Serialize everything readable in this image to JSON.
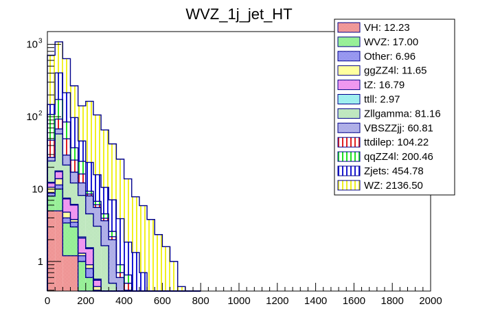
{
  "chart_data": {
    "type": "bar",
    "subtype": "stacked-histogram",
    "title": "WVZ_1j_jet_HT",
    "xlabel": "",
    "ylabel": "",
    "xlim": [
      0,
      2000
    ],
    "ylim": [
      0.39,
      1500
    ],
    "yscale": "log",
    "bin_width": 40,
    "x_ticks": [
      "0",
      "200",
      "400",
      "600",
      "800",
      "1000",
      "1200",
      "1400",
      "1600",
      "1800",
      "2000"
    ],
    "x_tick_values": [
      0,
      200,
      400,
      600,
      800,
      1000,
      1200,
      1400,
      1600,
      1800,
      2000
    ],
    "y_ticks": [
      {
        "value": 1,
        "base": "1",
        "exp": ""
      },
      {
        "value": 10,
        "base": "10",
        "exp": ""
      },
      {
        "value": 100,
        "base": "10",
        "exp": "2"
      },
      {
        "value": 1000,
        "base": "10",
        "exp": "3"
      }
    ],
    "legend_position": "top-right",
    "grid": false,
    "bin_edges_start": [
      0,
      40,
      80,
      120,
      160,
      200,
      240,
      280,
      320,
      360,
      400,
      440,
      480,
      520,
      560,
      600,
      640,
      680,
      720,
      760
    ],
    "series": [
      {
        "name": "VH",
        "legend": "VH: 12.23",
        "color": "#e03030",
        "pattern": "checker",
        "values": [
          5.0,
          5.0,
          1.2,
          1.2,
          0,
          0,
          0,
          0,
          0,
          0,
          0,
          0,
          0,
          0,
          0,
          0,
          0,
          0,
          0,
          0
        ]
      },
      {
        "name": "WVZ",
        "legend": "WVZ: 17.00",
        "color": "#30e030",
        "pattern": "checker",
        "values": [
          3.0,
          5.0,
          2.2,
          1.8,
          1.0,
          0.6,
          0.3,
          0,
          0,
          0,
          0,
          0,
          0,
          0,
          0,
          0,
          0,
          0,
          0,
          0
        ]
      },
      {
        "name": "Other",
        "legend": "Other: 6.96",
        "color": "#3030e0",
        "pattern": "checker",
        "values": [
          0.8,
          1.4,
          0.6,
          0.5,
          0.2,
          0.2,
          0.1,
          0,
          0,
          0,
          0,
          0,
          0,
          0,
          0,
          0,
          0,
          0,
          0,
          0
        ]
      },
      {
        "name": "ggZZ4l",
        "legend": "ggZZ4l: 11.65",
        "color": "#ffff40",
        "pattern": "checker",
        "values": [
          1.8,
          2.5,
          0.8,
          0.3,
          0.1,
          0.1,
          0.05,
          0,
          0,
          0,
          0,
          0,
          0,
          0,
          0,
          0,
          0,
          0,
          0,
          0
        ]
      },
      {
        "name": "tZ",
        "legend": "tZ: 16.79",
        "color": "#e030e0",
        "pattern": "checker",
        "values": [
          1.5,
          3.5,
          2.5,
          2.2,
          0.8,
          0.6,
          0.1,
          0.05,
          0,
          0,
          0,
          0,
          0,
          0,
          0,
          0,
          0,
          0,
          0,
          0
        ]
      },
      {
        "name": "ttll",
        "legend": "ttll: 2.97",
        "color": "#40e0e0",
        "pattern": "checker",
        "values": [
          0.3,
          0.4,
          0.2,
          0.15,
          0.08,
          0.05,
          0.02,
          0,
          0,
          0,
          0,
          0,
          0,
          0,
          0,
          0,
          0,
          0,
          0,
          0
        ]
      },
      {
        "name": "Zllgamma",
        "legend": "Zllgamma: 81.16",
        "color": "#80d080",
        "pattern": "checker",
        "values": [
          12,
          40,
          14,
          6,
          6,
          3,
          2.5,
          1.6,
          0.5,
          0.3,
          0.1,
          0,
          0,
          0,
          0,
          0,
          0,
          0,
          0,
          0
        ]
      },
      {
        "name": "VBSZZjj",
        "legend": "VBSZZjj: 60.81",
        "color": "#6060d0",
        "pattern": "checker",
        "values": [
          3,
          10,
          8,
          5,
          4,
          3.5,
          2.5,
          2,
          1.5,
          0.3,
          0.3,
          0.15,
          0.1,
          0,
          0,
          0,
          0,
          0,
          0,
          0
        ]
      },
      {
        "name": "ttdilep",
        "legend": "ttdilep: 104.22",
        "color": "#e02020",
        "pattern": "vlines",
        "values": [
          20,
          25,
          20,
          8,
          4,
          0.5,
          0.5,
          0.3,
          0.2,
          0.1,
          0.1,
          0.08,
          0.05,
          0,
          0,
          0,
          0,
          0,
          0,
          0
        ]
      },
      {
        "name": "qqZZ4l",
        "legend": "qqZZ4l: 200.46",
        "color": "#20e020",
        "pattern": "vlines",
        "values": [
          60,
          80,
          35,
          12,
          8,
          0.8,
          0.7,
          0.6,
          0.4,
          0.2,
          0.15,
          0.1,
          0.05,
          0,
          0,
          0,
          0,
          0,
          0,
          0
        ]
      },
      {
        "name": "Zjets",
        "legend": "Zjets: 454.78",
        "color": "#1818d0",
        "pattern": "vlines",
        "values": [
          40,
          230,
          130,
          60,
          22,
          14,
          9,
          6,
          4.5,
          3.0,
          1.2,
          1.0,
          0.5,
          0.3,
          0.15,
          0,
          0,
          0,
          0,
          0
        ]
      },
      {
        "name": "WZ",
        "legend": "WZ: 2136.50",
        "color": "#f0f020",
        "pattern": "vlines",
        "values": [
          560,
          680,
          420,
          170,
          95,
          140,
          90,
          55,
          35,
          22,
          12,
          6.5,
          5.2,
          3.5,
          2.2,
          1.6,
          1.0,
          0.45,
          0.3,
          0
        ]
      }
    ]
  }
}
